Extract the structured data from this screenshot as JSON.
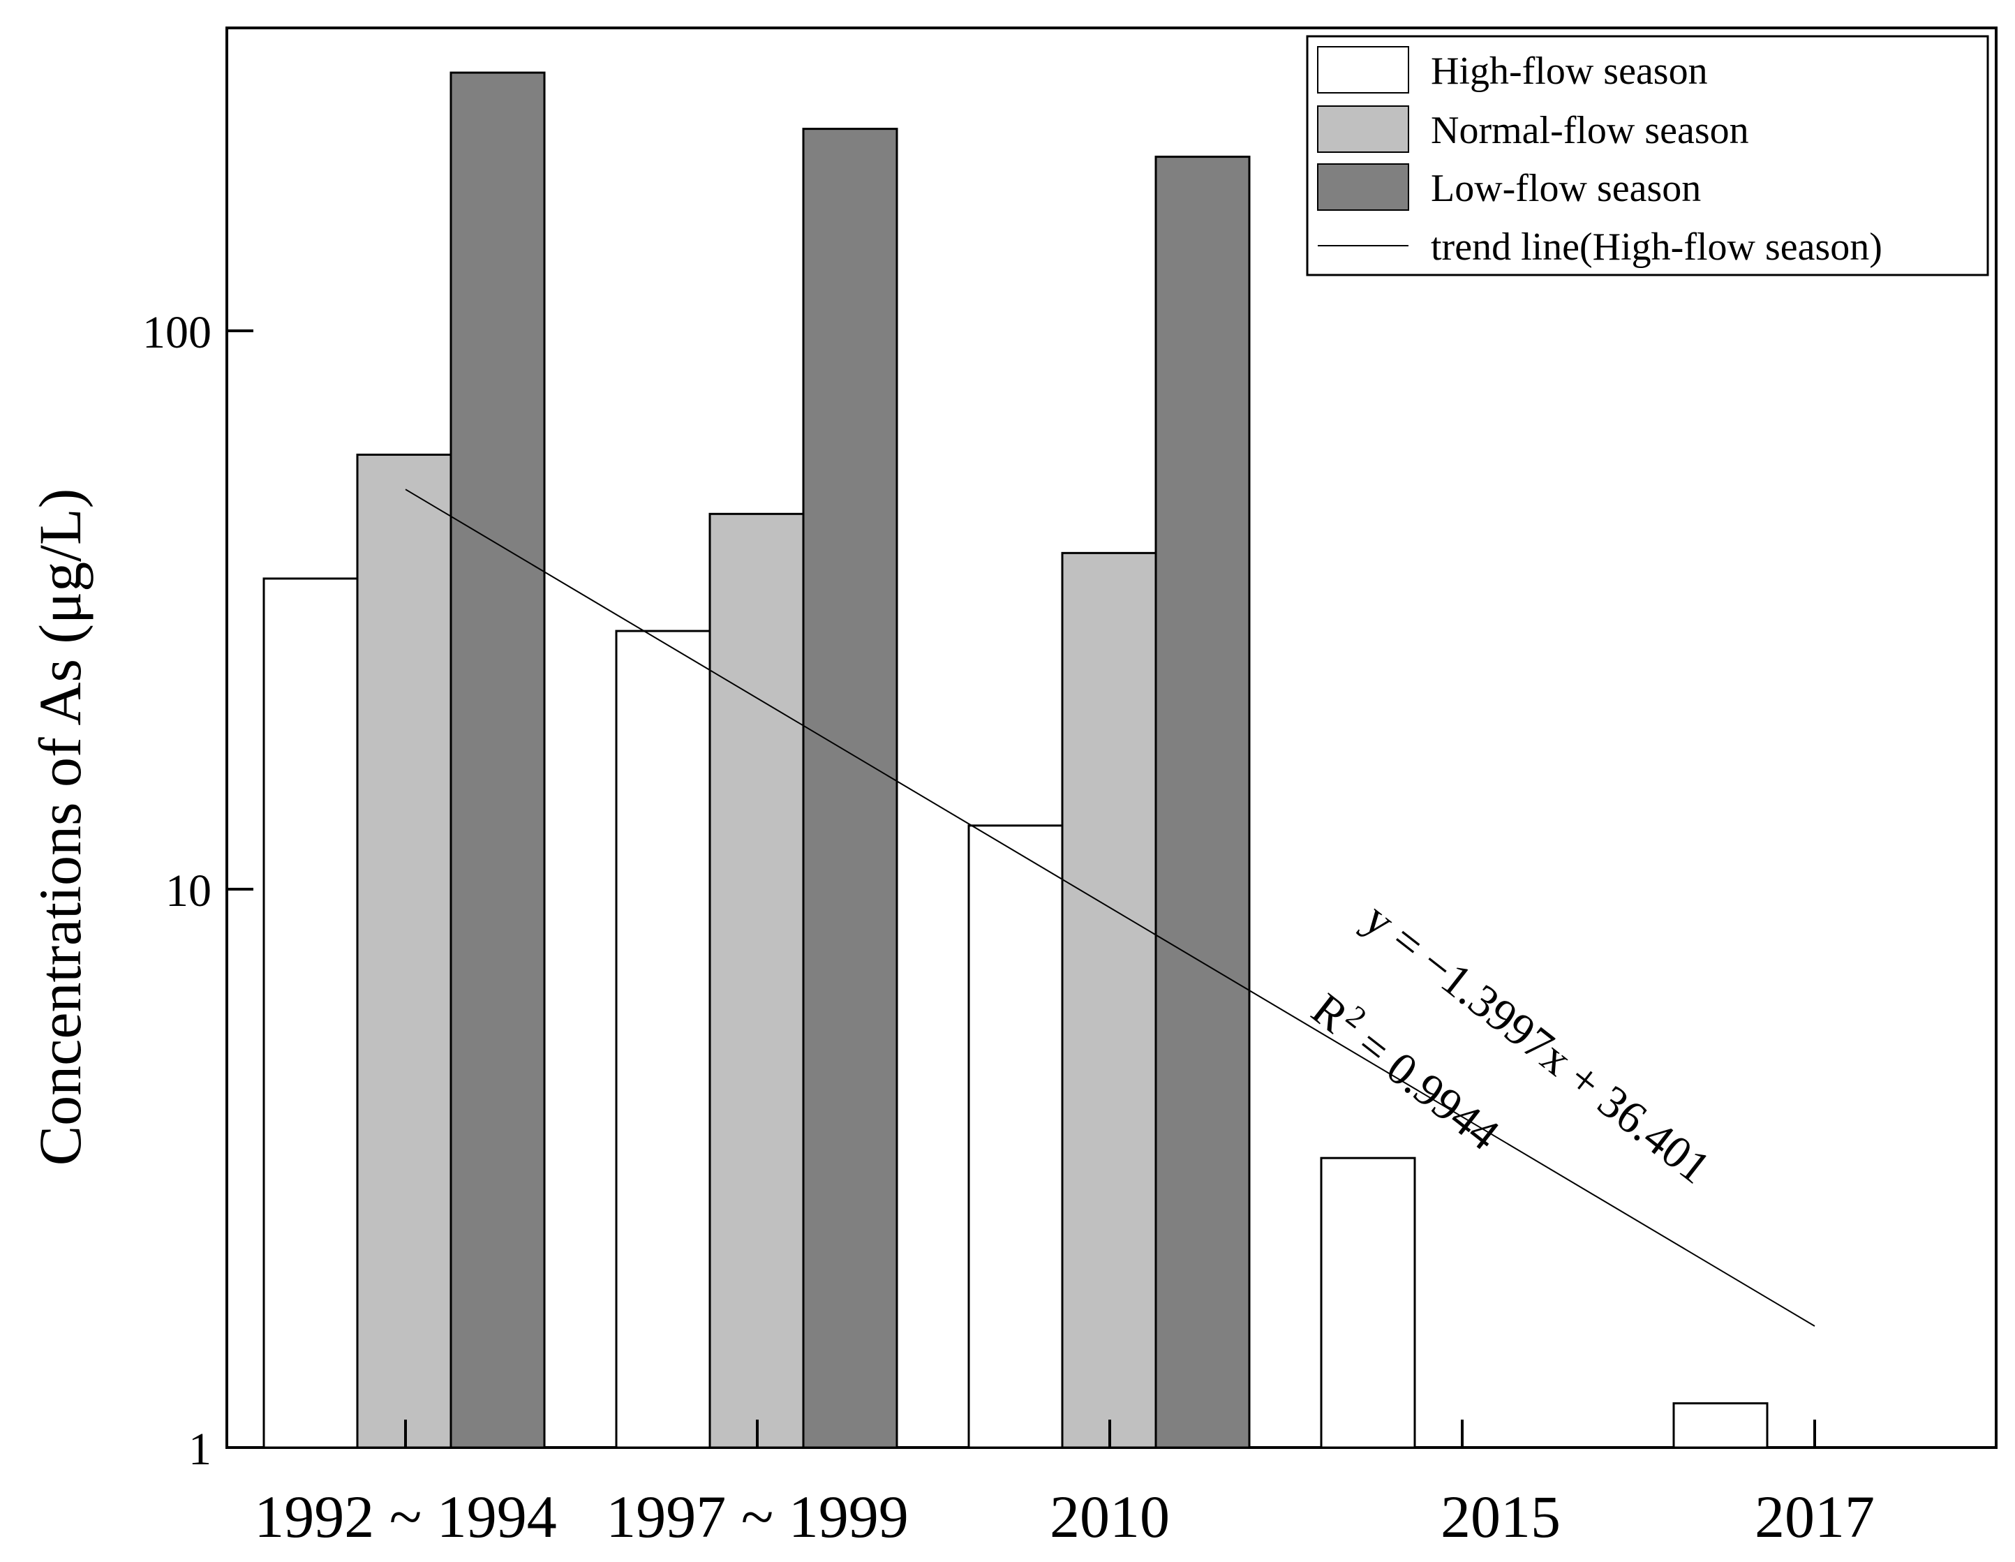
{
  "chart_data": {
    "type": "bar",
    "scale": "log",
    "ylim": [
      1,
      300
    ],
    "yticks": [
      1,
      10,
      100
    ],
    "ylabel": "Concentrations of As (μg/L)",
    "categories": [
      "1992 ~ 1994",
      "1997 ~ 1999",
      "2010",
      "2015",
      "2017"
    ],
    "series": [
      {
        "name": "High-flow season",
        "color": "#ffffff",
        "values": [
          36,
          29,
          13,
          3.3,
          1.2
        ]
      },
      {
        "name": "Normal-flow season",
        "color": "#c0c0c0",
        "values": [
          60,
          47,
          40,
          null,
          null
        ]
      },
      {
        "name": "Low-flow season",
        "color": "#808080",
        "values": [
          290,
          230,
          205,
          null,
          null
        ]
      }
    ],
    "trend_line": {
      "name": "trend line(High-flow season)",
      "start": {
        "category": "1992 ~ 1994",
        "value": 52
      },
      "end": {
        "category": "2017",
        "value": 1.65
      }
    },
    "annotations": {
      "equation": "y = −1.3997x + 36.401",
      "r2_prefix": "R",
      "r2_sup": "2",
      "r2_rest": " = 0.9944"
    },
    "legend_position": "top-right",
    "grid": false
  }
}
